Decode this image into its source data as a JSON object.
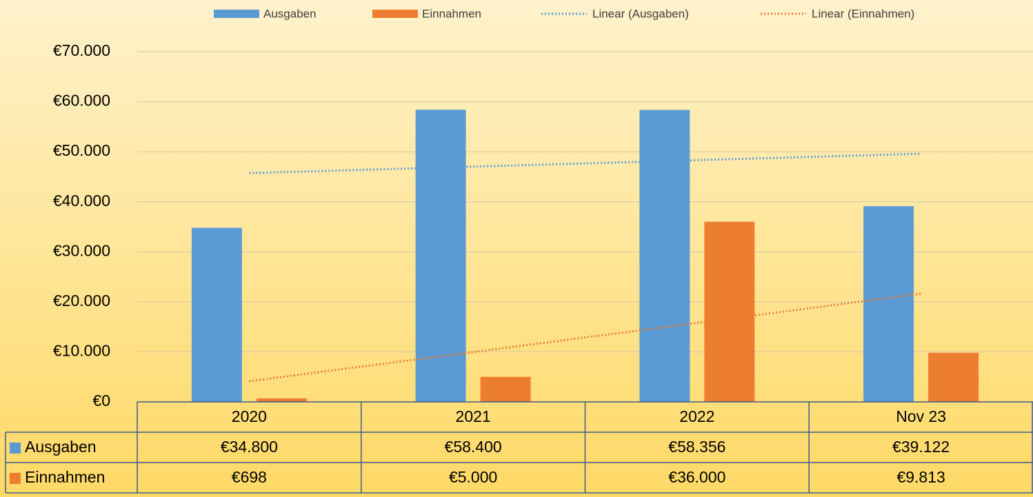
{
  "chart_data": {
    "type": "bar",
    "categories": [
      "2020",
      "2021",
      "2022",
      "Nov 23"
    ],
    "series": [
      {
        "name": "Ausgaben",
        "color": "#5b9bd5",
        "values": [
          34800,
          58400,
          58356,
          39122
        ],
        "value_labels": [
          "€34.800",
          "€58.400",
          "€58.356",
          "€39.122"
        ],
        "trendline": "Linear (Ausgaben)"
      },
      {
        "name": "Einnahmen",
        "color": "#ed7d31",
        "values": [
          698,
          5000,
          36000,
          9813
        ],
        "value_labels": [
          "€698",
          "€5.000",
          "€36.000",
          "€9.813"
        ],
        "trendline": "Linear (Einnahmen)"
      }
    ],
    "ylim": [
      0,
      70000
    ],
    "yticks": [
      {
        "value": 0,
        "label": "€0"
      },
      {
        "value": 10000,
        "label": "€10.000"
      },
      {
        "value": 20000,
        "label": "€20.000"
      },
      {
        "value": 30000,
        "label": "€30.000"
      },
      {
        "value": 40000,
        "label": "€40.000"
      },
      {
        "value": 50000,
        "label": "€50.000"
      },
      {
        "value": 60000,
        "label": "€60.000"
      },
      {
        "value": 70000,
        "label": "€70.000"
      }
    ],
    "grid": true,
    "legend": "top"
  }
}
